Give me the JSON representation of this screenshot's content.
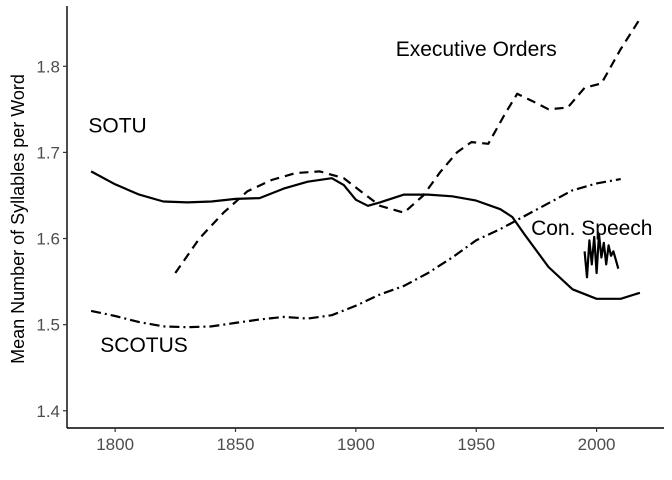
{
  "chart_data": {
    "type": "line",
    "title": "",
    "xlabel": "",
    "ylabel": "Mean Number of Syllables per Word",
    "xlim": [
      1780,
      2028
    ],
    "ylim": [
      1.38,
      1.87
    ],
    "xticks": [
      1800,
      1850,
      1900,
      1950,
      2000
    ],
    "yticks": [
      1.4,
      1.5,
      1.6,
      1.7,
      1.8
    ],
    "grid": false,
    "legend": "none",
    "annotations": [
      {
        "text": "Executive Orders",
        "x": 1950,
        "y": 1.812
      },
      {
        "text": "SOTU",
        "x": 1801,
        "y": 1.723
      },
      {
        "text": "Con. Speech",
        "x": 1998,
        "y": 1.604
      },
      {
        "text": "SCOTUS",
        "x": 1812,
        "y": 1.468
      }
    ],
    "series": [
      {
        "dash": "solid",
        "x": [
          1790,
          1800,
          1810,
          1820,
          1830,
          1840,
          1850,
          1860,
          1870,
          1880,
          1890,
          1895,
          1900,
          1905,
          1910,
          1920,
          1930,
          1940,
          1950,
          1960,
          1965,
          1970,
          1980,
          1990,
          2000,
          2010,
          2018
        ],
        "y": [
          1.678,
          1.663,
          1.651,
          1.643,
          1.642,
          1.643,
          1.646,
          1.647,
          1.658,
          1.666,
          1.67,
          1.662,
          1.645,
          1.638,
          1.642,
          1.651,
          1.651,
          1.649,
          1.644,
          1.634,
          1.625,
          1.605,
          1.567,
          1.541,
          1.53,
          1.53,
          1.537
        ]
      },
      {
        "dash": "dashed",
        "x": [
          1825,
          1835,
          1845,
          1855,
          1865,
          1875,
          1885,
          1895,
          1902,
          1910,
          1920,
          1928,
          1935,
          1942,
          1948,
          1955,
          1962,
          1967,
          1973,
          1980,
          1988,
          1995,
          2002,
          2010,
          2018
        ],
        "y": [
          1.56,
          1.6,
          1.63,
          1.655,
          1.668,
          1.676,
          1.678,
          1.67,
          1.655,
          1.638,
          1.63,
          1.65,
          1.677,
          1.7,
          1.712,
          1.71,
          1.745,
          1.768,
          1.76,
          1.75,
          1.752,
          1.775,
          1.78,
          1.82,
          1.855
        ]
      },
      {
        "dash": "dotdash",
        "x": [
          1790,
          1800,
          1810,
          1820,
          1830,
          1840,
          1850,
          1860,
          1870,
          1880,
          1890,
          1900,
          1910,
          1920,
          1930,
          1940,
          1950,
          1960,
          1970,
          1980,
          1990,
          2000,
          2010
        ],
        "y": [
          1.516,
          1.51,
          1.503,
          1.498,
          1.497,
          1.498,
          1.502,
          1.506,
          1.509,
          1.507,
          1.511,
          1.522,
          1.535,
          1.545,
          1.56,
          1.578,
          1.598,
          1.611,
          1.626,
          1.641,
          1.656,
          1.664,
          1.669
        ]
      },
      {
        "dash": "solid",
        "x": [
          1995,
          1996,
          1997,
          1998,
          1999,
          2000,
          2001,
          2002,
          2003,
          2004,
          2005,
          2006,
          2007,
          2008,
          2009
        ],
        "y": [
          1.585,
          1.555,
          1.598,
          1.57,
          1.602,
          1.56,
          1.605,
          1.578,
          1.595,
          1.57,
          1.592,
          1.58,
          1.585,
          1.575,
          1.565
        ]
      }
    ]
  }
}
